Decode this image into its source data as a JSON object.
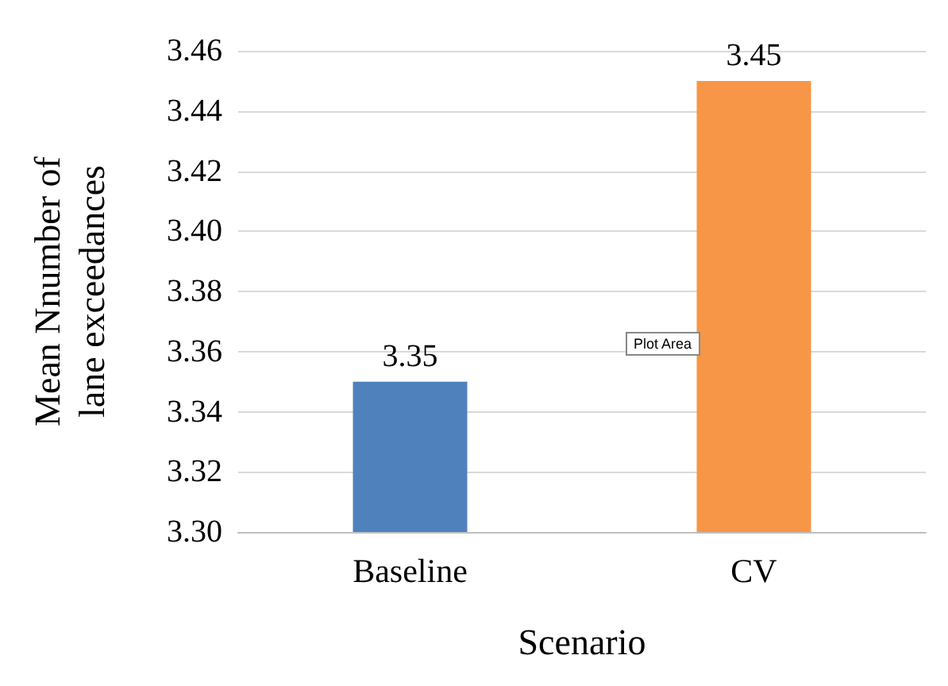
{
  "chart_data": {
    "type": "bar",
    "xlabel": "Scenario",
    "ylabel": "Mean Nnumber of lane exceedances",
    "categories": [
      "Baseline",
      "CV"
    ],
    "values": [
      3.35,
      3.45
    ],
    "colors": [
      "#4f81bd",
      "#f79646"
    ],
    "ylim": [
      3.3,
      3.46
    ],
    "yticks": [
      {
        "value": 3.3,
        "label": "3.30"
      },
      {
        "value": 3.32,
        "label": "3.32"
      },
      {
        "value": 3.34,
        "label": "3.34"
      },
      {
        "value": 3.36,
        "label": "3.36"
      },
      {
        "value": 3.38,
        "label": "3.38"
      },
      {
        "value": 3.4,
        "label": "3.40"
      },
      {
        "value": 3.42,
        "label": "3.42"
      },
      {
        "value": 3.44,
        "label": "3.44"
      },
      {
        "value": 3.46,
        "label": "3.46"
      }
    ],
    "grid": true,
    "data_labels": true,
    "annotations": [
      "Plot Area"
    ]
  }
}
